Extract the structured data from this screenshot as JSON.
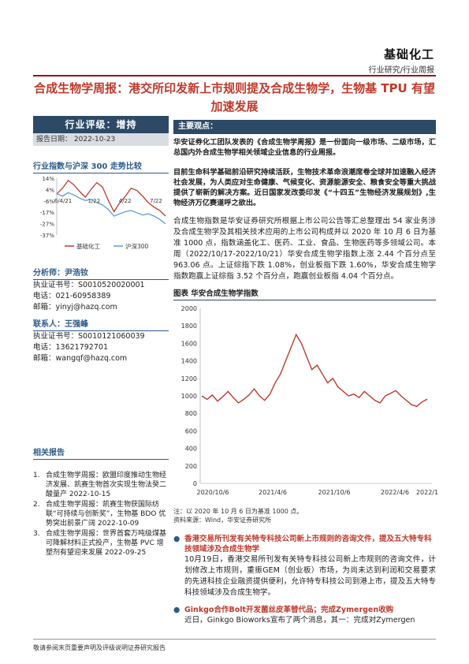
{
  "header": {
    "category": "基础化工",
    "subcategory": "行业研究/行业周报",
    "title": "合成生物学周报：港交所印发新上市规则提及合成生物学，生物基 TPU 有望加速发展"
  },
  "left": {
    "rating": "行业评级：增持",
    "report_date_label": "报告日期：",
    "report_date": "2022-10-23",
    "chart_title": "行业指数与沪深 300 走势比较",
    "analysts_title": "分析师：尹浩钕",
    "analyst1": {
      "cert": "执业证书号：S0010520020001",
      "phone": "电话：021-60958389",
      "email": "邮箱：yinyj@hazq.com"
    },
    "contact_title": "联系人：王强峰",
    "analyst2": {
      "cert": "执业证书号：S0010121060039",
      "phone": "电话：13621792701",
      "email": "邮箱：wangqf@hazq.com"
    },
    "related_title": "相关报告",
    "related": [
      {
        "n": "1.",
        "text": "合成生物学周报：欧盟印度推动生物经济发展、凯赛生物首次实现生物法癸二酸量产 2022-10-15"
      },
      {
        "n": "2.",
        "text": "合成生物学周报：凯赛生物获国际纺联“可持续与创新奖”，生物基 BDO 优势突出前景广阔 2022-10-09"
      },
      {
        "n": "3.",
        "text": "合成生物学周报：世界首套万吨级煤基可降解材料正式投产，生物基 PVC 增塑剂有望迎来发展 2022-09-25"
      }
    ]
  },
  "compare_chart": {
    "type": "line",
    "x_ticks": [
      "6/4/21",
      "1/22",
      "4/22",
      "7/22"
    ],
    "y_ticks": [
      "14%",
      "4%",
      "-6%",
      "-17%",
      "-27%",
      "-37%"
    ],
    "series": [
      {
        "name": "基础化工",
        "color": "#c0392b",
        "values": [
          0,
          5,
          12,
          8,
          2,
          -3,
          4,
          10,
          6,
          -6,
          -16,
          -8,
          -2,
          5,
          3,
          -2,
          -8,
          -12,
          -15,
          -20
        ]
      },
      {
        "name": "沪深300",
        "color": "#5b9bd5",
        "values": [
          0,
          -2,
          1,
          -1,
          -4,
          -6,
          -5,
          -8,
          -10,
          -14,
          -20,
          -18,
          -16,
          -15,
          -17,
          -19,
          -18,
          -20,
          -23,
          -27
        ]
      }
    ],
    "ylim": [
      -37,
      14
    ]
  },
  "right": {
    "key_title": "主要观点：",
    "p1": "华安证券化工团队发表的《合成生物学周报》是一份面向一级市场、二级市场，汇总国内外合成生物学相关领域企业信息的行业周报。",
    "p2": "目前生命科学基础前沿研究持续活跃，生物技术革命浪潮席卷全球并加速融入经济社会发展，为人类应对生命健康、气候变化、资源能源安全、粮食安全等重大挑战提供了崭新的解决方案。近日国家发改委印发《“十四五”生物经济发展规划》,生物经济万亿赛道呼之欲出。",
    "p3": "合成生物指数是华安证券研究所根据上市公司公告等汇总整理出 54 家业务涉及合成生物学及其相关技术应用的上市公司构成并以 2020 年 10 月 6 日为基准 1000 点，指数涵盖化工、医药、工业、食品、生物医药等多领域公司。本周（2022/10/17-2022/10/21）华安合成生物学指数上涨 2.44 个百分点至 963.06 点。上证综指下跌 1.08%，创业板指下跌 1.60%，华安合成生物学指数跑赢上证综指 3.52 个百分点，跑赢创业板指 4.04 个百分点。",
    "fig_title": "图表 华安合成生物学指数",
    "note1": "注：以 2020 年 10 月 6 日为基准 1000 点。",
    "note2": "资料来源：Wind，华安证券研究所",
    "news1_title": "香港交易所刊发有关特专科技公司新上市规则的咨询文件，提及五大特专科技领域涉及合成生物学",
    "news1_body": "10月19日，香港交易所刊发有关特专科技公司新上市规则的咨询文件，计划修改上市规则，重振GEM（创业板）市场，为尚未达到利润和交易要求的先进科技企业融资提供便利，允许特专科技公司到港上市，提及五大特专科技领域涉及合成生物学。",
    "news2_title": "Ginkgo合作Bolt开发菌丝皮革替代品；完成Zymergen收购",
    "news2_body": "近日，Ginkgo Bioworks宣布了两个消息，其一：完成对Zymergen"
  },
  "index_chart": {
    "type": "line",
    "x_ticks": [
      "2020/10/6",
      "2021/4/6",
      "2021/10/6",
      "2022/4/6",
      "2022/1"
    ],
    "y_ticks": [
      "2000",
      "1800",
      "1600",
      "1400",
      "1200",
      "1000",
      "800",
      "600",
      "400",
      "200",
      "0"
    ],
    "ylim": [
      0,
      2000
    ],
    "color": "#c0392b",
    "values": [
      1000,
      960,
      1010,
      940,
      990,
      1050,
      980,
      920,
      960,
      1010,
      1080,
      1000,
      950,
      1020,
      1150,
      1250,
      1400,
      1550,
      1700,
      1600,
      1450,
      1300,
      1350,
      1250,
      1150,
      1200,
      1100,
      1050,
      1000,
      1020,
      980,
      1050,
      1000,
      950,
      920,
      1000,
      1030,
      1060,
      1000,
      950,
      900,
      880,
      930,
      963
    ]
  },
  "footer": "敬请参阅末页重要声明及评级说明证券研究报告"
}
